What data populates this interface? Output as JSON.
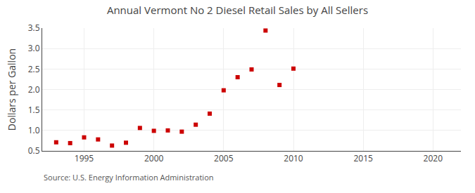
{
  "chart_data": {
    "type": "scatter",
    "title": "Annual Vermont No 2 Diesel Retail Sales by All Sellers",
    "ylabel": "Dollars per Gallon",
    "annotations": [
      "Source: U.S. Energy Information Administration"
    ],
    "x": [
      1993,
      1994,
      1995,
      1996,
      1997,
      1998,
      1999,
      2000,
      2001,
      2002,
      2003,
      2004,
      2005,
      2006,
      2007,
      2008,
      2009,
      2010
    ],
    "values": [
      0.71,
      0.69,
      0.83,
      0.78,
      0.63,
      0.7,
      1.06,
      0.99,
      1.0,
      0.97,
      1.14,
      1.41,
      1.98,
      2.3,
      2.49,
      3.44,
      2.11,
      2.51
    ],
    "color": "#cc0000",
    "marker": "square",
    "xlim": [
      1992,
      2022
    ],
    "xticks": [
      1995,
      2000,
      2005,
      2010,
      2015,
      2020
    ],
    "ylim": [
      0.5,
      3.5
    ],
    "yticks": [
      0.5,
      {
        "value": 1,
        "label": "1.0"
      },
      1.5,
      {
        "value": 2,
        "label": "2.0"
      },
      2.5,
      {
        "value": 3,
        "label": "3.0"
      },
      3.5
    ],
    "grid": true
  }
}
